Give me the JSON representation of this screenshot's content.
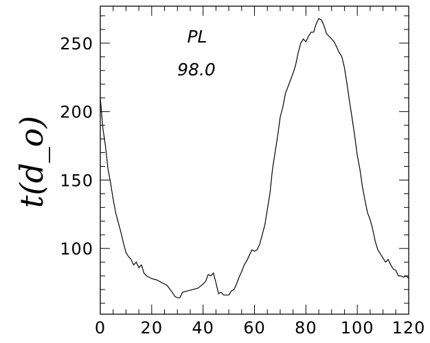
{
  "chart_data": {
    "type": "line",
    "title": "",
    "xlabel": "",
    "ylabel": "t(d_o)",
    "xlim": [
      0,
      120
    ],
    "ylim": [
      52,
      277
    ],
    "x_ticks": [
      "0",
      "20",
      "40",
      "60",
      "80",
      "100",
      "120"
    ],
    "y_ticks": [
      "100",
      "150",
      "200",
      "250"
    ],
    "grid": false,
    "annotations": [
      "PL",
      "98.0"
    ],
    "series": [
      {
        "x": [
          0,
          1,
          2,
          3,
          4,
          5,
          6,
          7,
          8,
          9,
          10,
          11,
          12,
          13,
          14,
          15,
          16,
          17,
          18,
          19,
          20,
          22,
          24,
          26,
          28,
          29,
          30,
          31,
          32,
          34,
          36,
          38,
          40,
          41,
          42,
          43,
          44,
          45,
          46,
          47,
          48,
          49,
          50,
          51,
          52,
          53,
          54,
          55,
          56,
          57,
          58,
          59,
          60,
          61,
          62,
          64,
          66,
          67,
          68,
          69,
          70,
          71,
          72,
          73,
          74,
          75,
          76,
          77,
          78,
          79,
          80,
          81,
          82,
          83,
          84,
          85,
          86,
          87,
          88,
          89,
          90,
          91,
          92,
          93,
          94,
          95,
          96,
          97,
          98,
          99,
          100,
          101,
          102,
          103,
          104,
          105,
          106,
          107,
          108,
          109,
          110,
          111,
          112,
          113,
          114,
          115,
          116,
          117,
          118,
          119,
          120
        ],
        "values": [
          210,
          188,
          175,
          158,
          148,
          136,
          126,
          119,
          112,
          104,
          97,
          94,
          92,
          88,
          90,
          86,
          88,
          82,
          80,
          79,
          78,
          77,
          75,
          73,
          68,
          65,
          64,
          64,
          68,
          69,
          70,
          71,
          74,
          76,
          81,
          80,
          82,
          75,
          67,
          68,
          66,
          66,
          66,
          69,
          70,
          74,
          79,
          83,
          88,
          91,
          95,
          99,
          98,
          99,
          103,
          117,
          140,
          158,
          170,
          182,
          196,
          203,
          213,
          218,
          223,
          228,
          234,
          243,
          250,
          253,
          251,
          255,
          258,
          258,
          264,
          268,
          267,
          263,
          257,
          255,
          253,
          251,
          247,
          243,
          240,
          232,
          220,
          207,
          195,
          182,
          168,
          158,
          145,
          135,
          126,
          121,
          114,
          105,
          99,
          96,
          93,
          90,
          92,
          88,
          85,
          84,
          80,
          80,
          79,
          80,
          78
        ]
      }
    ]
  }
}
